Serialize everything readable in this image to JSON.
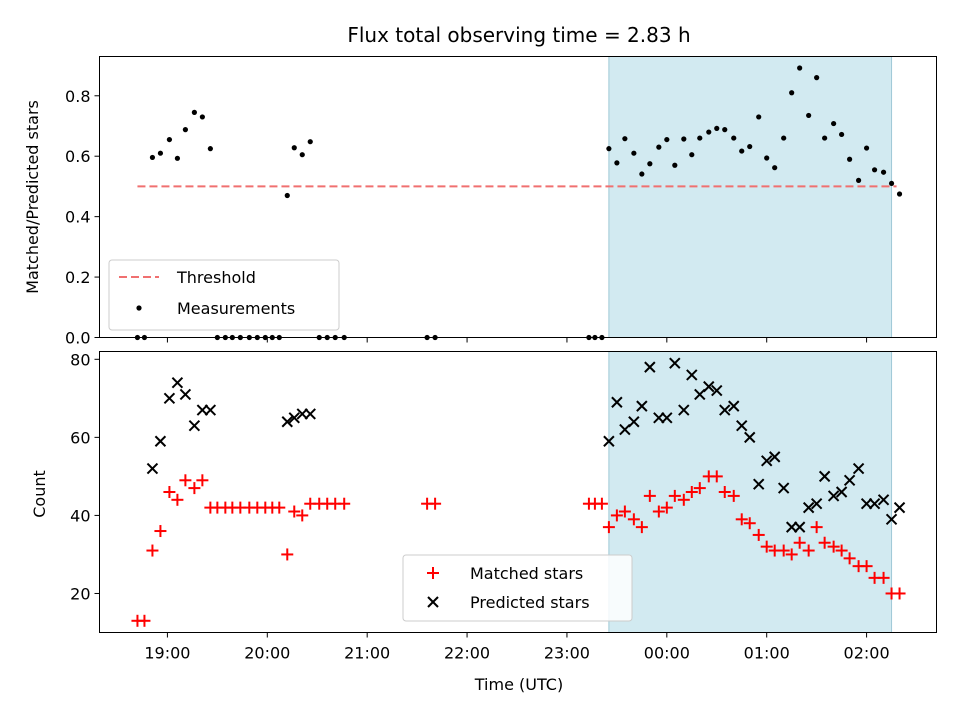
{
  "chart_data": {
    "type": "scatter",
    "title": "Flux total observing time = 2.83 h",
    "xlabel": "Time (UTC)",
    "xlim": [
      18.32,
      2.7
    ],
    "x_ticks": [
      {
        "v": 19,
        "label": "19:00"
      },
      {
        "v": 20,
        "label": "20:00"
      },
      {
        "v": 21,
        "label": "21:00"
      },
      {
        "v": 22,
        "label": "22:00"
      },
      {
        "v": 23,
        "label": "23:00"
      },
      {
        "v": 0,
        "label": "00:00"
      },
      {
        "v": 1,
        "label": "01:00"
      },
      {
        "v": 2,
        "label": "02:00"
      }
    ],
    "shaded_region": {
      "from": 23.42,
      "to": 2.25,
      "color": "#add8e6"
    },
    "panels": [
      {
        "ylabel": "Matched/Predicted stars",
        "ylim": [
          0,
          0.93
        ],
        "y_ticks": [
          "0.0",
          "0.2",
          "0.4",
          "0.6",
          "0.8"
        ],
        "legend": {
          "position": "lower left",
          "entries": [
            "Threshold",
            "Measurements"
          ]
        },
        "threshold": {
          "name": "Threshold",
          "value": 0.5,
          "x_from": 18.7,
          "x_to": 2.3,
          "color": "#f07070"
        },
        "series": [
          {
            "name": "Measurements",
            "marker": "dot",
            "color": "#000000",
            "points": [
              [
                18.7,
                0
              ],
              [
                18.77,
                0
              ],
              [
                18.85,
                0.596
              ],
              [
                18.93,
                0.61
              ],
              [
                19.02,
                0.655
              ],
              [
                19.1,
                0.593
              ],
              [
                19.18,
                0.688
              ],
              [
                19.27,
                0.745
              ],
              [
                19.35,
                0.73
              ],
              [
                19.43,
                0.625
              ],
              [
                19.5,
                0
              ],
              [
                19.58,
                0
              ],
              [
                19.65,
                0
              ],
              [
                19.73,
                0
              ],
              [
                19.82,
                0
              ],
              [
                19.9,
                0
              ],
              [
                19.98,
                0
              ],
              [
                20.05,
                0
              ],
              [
                20.12,
                0
              ],
              [
                20.2,
                0.47
              ],
              [
                20.27,
                0.628
              ],
              [
                20.35,
                0.605
              ],
              [
                20.43,
                0.648
              ],
              [
                20.52,
                0
              ],
              [
                20.6,
                0
              ],
              [
                20.68,
                0
              ],
              [
                20.77,
                0
              ],
              [
                21.6,
                0
              ],
              [
                21.68,
                0
              ],
              [
                23.22,
                0
              ],
              [
                23.28,
                0
              ],
              [
                23.35,
                0
              ],
              [
                23.42,
                0.625
              ],
              [
                23.5,
                0.578
              ],
              [
                23.58,
                0.658
              ],
              [
                23.67,
                0.61
              ],
              [
                23.75,
                0.541
              ],
              [
                23.83,
                0.575
              ],
              [
                23.92,
                0.63
              ],
              [
                0.0,
                0.655
              ],
              [
                0.08,
                0.57
              ],
              [
                0.17,
                0.657
              ],
              [
                0.25,
                0.605
              ],
              [
                0.33,
                0.66
              ],
              [
                0.42,
                0.68
              ],
              [
                0.5,
                0.692
              ],
              [
                0.58,
                0.688
              ],
              [
                0.67,
                0.66
              ],
              [
                0.75,
                0.617
              ],
              [
                0.83,
                0.632
              ],
              [
                0.92,
                0.73
              ],
              [
                1.0,
                0.594
              ],
              [
                1.08,
                0.562
              ],
              [
                1.17,
                0.66
              ],
              [
                1.25,
                0.81
              ],
              [
                1.33,
                0.892
              ],
              [
                1.42,
                0.735
              ],
              [
                1.5,
                0.86
              ],
              [
                1.58,
                0.66
              ],
              [
                1.67,
                0.708
              ],
              [
                1.75,
                0.672
              ],
              [
                1.83,
                0.59
              ],
              [
                1.92,
                0.52
              ],
              [
                2.0,
                0.627
              ],
              [
                2.08,
                0.555
              ],
              [
                2.17,
                0.547
              ],
              [
                2.25,
                0.51
              ],
              [
                2.33,
                0.475
              ]
            ]
          }
        ]
      },
      {
        "ylabel": "Count",
        "ylim": [
          10,
          82
        ],
        "y_ticks": [
          "20",
          "40",
          "60",
          "80"
        ],
        "legend": {
          "position": "lower center",
          "entries": [
            "Matched stars",
            "Predicted stars"
          ]
        },
        "series": [
          {
            "name": "Matched stars",
            "marker": "plus",
            "color": "#ff0000",
            "points": [
              [
                18.7,
                13
              ],
              [
                18.77,
                13
              ],
              [
                18.85,
                31
              ],
              [
                18.93,
                36
              ],
              [
                19.02,
                46
              ],
              [
                19.1,
                44
              ],
              [
                19.18,
                49
              ],
              [
                19.27,
                47
              ],
              [
                19.35,
                49
              ],
              [
                19.43,
                42
              ],
              [
                19.5,
                42
              ],
              [
                19.58,
                42
              ],
              [
                19.65,
                42
              ],
              [
                19.73,
                42
              ],
              [
                19.82,
                42
              ],
              [
                19.9,
                42
              ],
              [
                19.98,
                42
              ],
              [
                20.05,
                42
              ],
              [
                20.12,
                42
              ],
              [
                20.2,
                30
              ],
              [
                20.27,
                41
              ],
              [
                20.35,
                40
              ],
              [
                20.43,
                43
              ],
              [
                20.52,
                43
              ],
              [
                20.6,
                43
              ],
              [
                20.68,
                43
              ],
              [
                20.77,
                43
              ],
              [
                21.6,
                43
              ],
              [
                21.68,
                43
              ],
              [
                23.22,
                43
              ],
              [
                23.28,
                43
              ],
              [
                23.35,
                43
              ],
              [
                23.42,
                37
              ],
              [
                23.5,
                40
              ],
              [
                23.58,
                41
              ],
              [
                23.67,
                39
              ],
              [
                23.75,
                37
              ],
              [
                23.83,
                45
              ],
              [
                23.92,
                41
              ],
              [
                0.0,
                42
              ],
              [
                0.08,
                45
              ],
              [
                0.17,
                44
              ],
              [
                0.25,
                46
              ],
              [
                0.33,
                47
              ],
              [
                0.42,
                50
              ],
              [
                0.5,
                50
              ],
              [
                0.58,
                46
              ],
              [
                0.67,
                45
              ],
              [
                0.75,
                39
              ],
              [
                0.83,
                38
              ],
              [
                0.92,
                35
              ],
              [
                1.0,
                32
              ],
              [
                1.08,
                31
              ],
              [
                1.17,
                31
              ],
              [
                1.25,
                30
              ],
              [
                1.33,
                33
              ],
              [
                1.42,
                31
              ],
              [
                1.5,
                37
              ],
              [
                1.58,
                33
              ],
              [
                1.67,
                32
              ],
              [
                1.75,
                31
              ],
              [
                1.83,
                29
              ],
              [
                1.92,
                27
              ],
              [
                2.0,
                27
              ],
              [
                2.08,
                24
              ],
              [
                2.17,
                24
              ],
              [
                2.25,
                20
              ],
              [
                2.33,
                20
              ]
            ]
          },
          {
            "name": "Predicted stars",
            "marker": "x",
            "color": "#000000",
            "points": [
              [
                18.85,
                52
              ],
              [
                18.93,
                59
              ],
              [
                19.02,
                70
              ],
              [
                19.1,
                74
              ],
              [
                19.18,
                71
              ],
              [
                19.27,
                63
              ],
              [
                19.35,
                67
              ],
              [
                19.43,
                67
              ],
              [
                20.2,
                64
              ],
              [
                20.27,
                65
              ],
              [
                20.35,
                66
              ],
              [
                20.43,
                66
              ],
              [
                23.42,
                59
              ],
              [
                23.5,
                69
              ],
              [
                23.58,
                62
              ],
              [
                23.67,
                64
              ],
              [
                23.75,
                68
              ],
              [
                23.83,
                78
              ],
              [
                23.92,
                65
              ],
              [
                0.0,
                65
              ],
              [
                0.08,
                79
              ],
              [
                0.17,
                67
              ],
              [
                0.25,
                76
              ],
              [
                0.33,
                71
              ],
              [
                0.42,
                73
              ],
              [
                0.5,
                72
              ],
              [
                0.58,
                67
              ],
              [
                0.67,
                68
              ],
              [
                0.75,
                63
              ],
              [
                0.83,
                60
              ],
              [
                0.92,
                48
              ],
              [
                1.0,
                54
              ],
              [
                1.08,
                55
              ],
              [
                1.17,
                47
              ],
              [
                1.25,
                37
              ],
              [
                1.33,
                37
              ],
              [
                1.42,
                42
              ],
              [
                1.5,
                43
              ],
              [
                1.58,
                50
              ],
              [
                1.67,
                45
              ],
              [
                1.75,
                46
              ],
              [
                1.83,
                49
              ],
              [
                1.92,
                52
              ],
              [
                2.0,
                43
              ],
              [
                2.08,
                43
              ],
              [
                2.17,
                44
              ],
              [
                2.25,
                39
              ],
              [
                2.33,
                42
              ]
            ]
          }
        ]
      }
    ]
  }
}
